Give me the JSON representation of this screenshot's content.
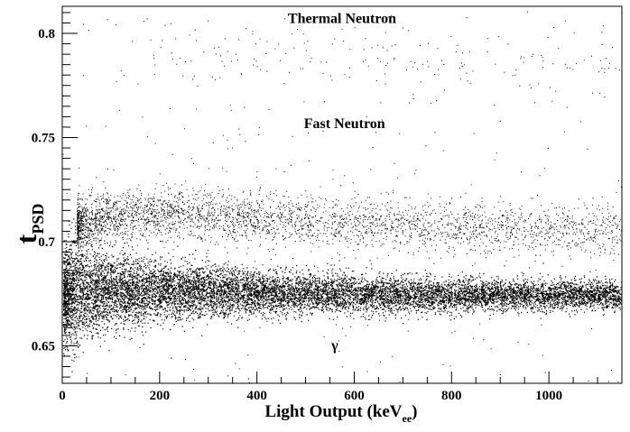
{
  "chart_data": {
    "type": "scatter",
    "xlabel": "Light Output (keV",
    "xlabel_sub": "ee",
    "xlabel_tail": ")",
    "ylabel": "t",
    "ylabel_sub": "PSD",
    "xlim": [
      0,
      1150
    ],
    "ylim": [
      0.632,
      0.813
    ],
    "x_ticks": [
      0,
      200,
      400,
      600,
      800,
      1000
    ],
    "x_tick_labels": [
      "0",
      "200",
      "400",
      "600",
      "800",
      "1000"
    ],
    "y_ticks": [
      0.65,
      0.7,
      0.75,
      0.8
    ],
    "y_tick_labels": [
      "0.65",
      "0.7",
      "0.75",
      "0.8"
    ],
    "grid": false,
    "marker_color": "#000000",
    "annotations": [
      {
        "text": "Thermal Neutron",
        "x": 575,
        "y": 0.805
      },
      {
        "text": "Fast Neutron",
        "x": 580,
        "y": 0.7545
      },
      {
        "text": "γ",
        "x": 560,
        "y": 0.648
      }
    ],
    "series": [
      {
        "population": "gamma band",
        "band_center": [
          [
            5,
            0.674
          ],
          [
            25,
            0.6765
          ],
          [
            50,
            0.677
          ],
          [
            100,
            0.677
          ],
          [
            200,
            0.6765
          ],
          [
            300,
            0.676
          ],
          [
            400,
            0.6755
          ],
          [
            600,
            0.675
          ],
          [
            800,
            0.6745
          ],
          [
            1000,
            0.6745
          ],
          [
            1150,
            0.6745
          ]
        ],
        "band_half_width": [
          [
            5,
            0.02
          ],
          [
            25,
            0.024
          ],
          [
            50,
            0.021
          ],
          [
            100,
            0.0165
          ],
          [
            200,
            0.0125
          ],
          [
            300,
            0.011
          ],
          [
            400,
            0.0095
          ],
          [
            600,
            0.008
          ],
          [
            800,
            0.007
          ],
          [
            1000,
            0.0065
          ],
          [
            1150,
            0.006
          ]
        ]
      },
      {
        "population": "fast neutron",
        "band_center": [
          [
            30,
            0.709
          ],
          [
            100,
            0.713
          ],
          [
            200,
            0.713
          ],
          [
            300,
            0.712
          ],
          [
            400,
            0.711
          ],
          [
            600,
            0.709
          ],
          [
            800,
            0.707
          ],
          [
            1000,
            0.706
          ],
          [
            1150,
            0.705
          ]
        ]
      },
      {
        "population": "thermal neutron",
        "band_center": [
          [
            200,
            0.787
          ],
          [
            1150,
            0.787
          ]
        ]
      }
    ]
  }
}
